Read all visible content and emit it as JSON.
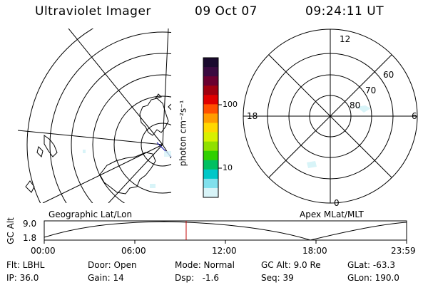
{
  "header": {
    "instrument": "Ultraviolet Imager",
    "date": "09 Oct 07",
    "time": "09:24:11 UT"
  },
  "colorbar": {
    "unit": "photon cm⁻²s⁻¹",
    "tick_high": "100",
    "tick_low": "10",
    "colors": [
      "#1a0a2e",
      "#3a0a40",
      "#6a0030",
      "#a00010",
      "#e00000",
      "#ff5000",
      "#ff9c00",
      "#ffd800",
      "#d8f000",
      "#90e000",
      "#30d000",
      "#00c060",
      "#00c8c8",
      "#80e0ec",
      "#d8f4f8"
    ]
  },
  "left_panel": {
    "caption": "Geographic Lat/Lon"
  },
  "right_panel": {
    "caption": "Apex MLat/MLT",
    "mlt_labels": {
      "top": "12",
      "left": "18",
      "right": "6",
      "bottom": "0"
    },
    "lat_labels": [
      "60",
      "70",
      "80"
    ]
  },
  "timeline": {
    "ylabel": "GC Alt",
    "y_high": "9.0",
    "y_low": "1.8",
    "x_ticks": [
      "00:00",
      "06:00",
      "12:00",
      "18:00",
      "23:59"
    ],
    "marker_hour": 9.4,
    "marker_color": "#c00000"
  },
  "status": {
    "flt": "Flt: LBHL",
    "ip": "IP: 36.0",
    "door": "Door: Open",
    "gain": "Gain: 14",
    "mode": "Mode: Normal",
    "dsp": "Dsp:   -1.6",
    "gcalt": "GC Alt: 9.0 Re",
    "seq": "Seq: 39",
    "glat": "GLat: -63.3",
    "glon": "GLon: 190.0"
  }
}
